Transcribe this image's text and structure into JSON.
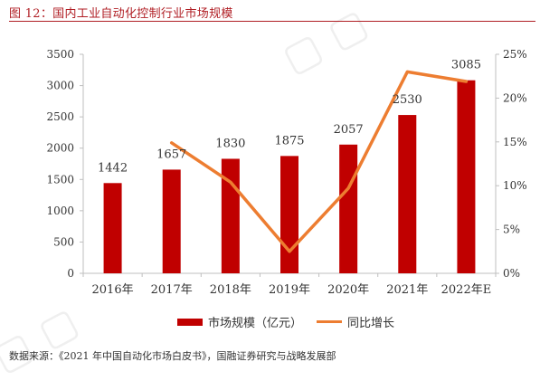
{
  "figure": {
    "title": "图 12：国内工业自动化控制行业市场规模",
    "source": "数据来源：《2021 年中国自动化市场白皮书》，国融证券研究与战略发展部"
  },
  "legend": {
    "bar_label": "市场规模（亿元）",
    "line_label": "同比增长"
  },
  "colors": {
    "bar": "#c00000",
    "line": "#ed7d31",
    "title": "#b01e24",
    "axis": "#bfbfbf"
  },
  "chart_data": {
    "type": "bar",
    "categories": [
      "2016年",
      "2017年",
      "2018年",
      "2019年",
      "2020年",
      "2021年",
      "2022年E"
    ],
    "series": [
      {
        "name": "市场规模（亿元）",
        "type": "bar",
        "axis": "left",
        "values": [
          1442,
          1657,
          1830,
          1875,
          2057,
          2530,
          3085
        ],
        "labels": [
          "1442",
          "1657",
          "1830",
          "1875",
          "2057",
          "2530",
          "3085"
        ]
      },
      {
        "name": "同比增长",
        "type": "line",
        "axis": "right",
        "values": [
          null,
          14.9,
          10.4,
          2.5,
          9.7,
          23.0,
          21.9
        ]
      }
    ],
    "y_left": {
      "min": 0,
      "max": 3500,
      "step": 500,
      "ticks": [
        "0",
        "500",
        "1000",
        "1500",
        "2000",
        "2500",
        "3000",
        "3500"
      ]
    },
    "y_right": {
      "min": 0,
      "max": 25,
      "step": 5,
      "ticks": [
        "0%",
        "5%",
        "10%",
        "15%",
        "20%",
        "25%"
      ]
    },
    "grid": false,
    "legend_position": "bottom"
  }
}
